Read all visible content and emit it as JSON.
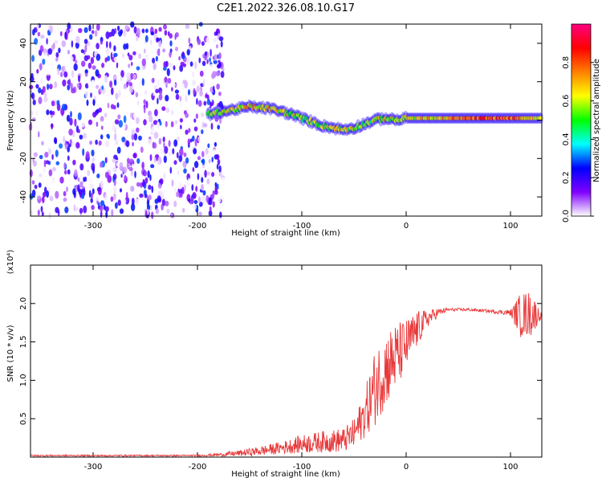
{
  "title": "C2E1.2022.326.08.10.G17",
  "chart_data": [
    {
      "type": "heatmap",
      "xlabel": "Height of straight line (km)",
      "ylabel": "Frequency (Hz)",
      "xlim": [
        -360,
        130
      ],
      "ylim": [
        -50,
        50
      ],
      "xticks": [
        -300,
        -200,
        -100,
        0,
        100
      ],
      "yticks": [
        -40,
        -20,
        0,
        20,
        40
      ],
      "colorbar": {
        "label": "Normalized spectral amplitude",
        "range": [
          0,
          1
        ],
        "ticks": [
          "0.0",
          "0.2",
          "0.4",
          "0.6",
          "0.8"
        ],
        "colors": [
          "#ffffff",
          "#8000ff",
          "#0000ff",
          "#00ffff",
          "#00ff00",
          "#ffff00",
          "#ff8000",
          "#ff0000",
          "#ff0080"
        ]
      },
      "noise_region": {
        "x": [
          -360,
          -175
        ],
        "y": [
          -50,
          50
        ],
        "amplitude": [
          0.0,
          0.3
        ]
      },
      "ridge": {
        "x": [
          -190,
          -170,
          -150,
          -130,
          -110,
          -95,
          -80,
          -70,
          -60,
          -50,
          -40,
          -30,
          -20,
          -10,
          0,
          30,
          60,
          90,
          110,
          130
        ],
        "frequency": [
          3,
          5,
          7,
          6,
          3,
          0,
          -3,
          -4,
          -5,
          -4,
          -2,
          0,
          1,
          0,
          1,
          1,
          1,
          1,
          1,
          1
        ],
        "amplitude": [
          0.5,
          0.6,
          0.65,
          0.65,
          0.6,
          0.55,
          0.55,
          0.6,
          0.6,
          0.55,
          0.5,
          0.55,
          0.6,
          0.6,
          0.65,
          0.65,
          0.75,
          0.8,
          0.7,
          0.65
        ]
      }
    },
    {
      "type": "line",
      "xlabel": "Height of straight line (km)",
      "ylabel": "SNR (10 * v/v)",
      "multiplier": "(x10⁴)",
      "xlim": [
        -360,
        130
      ],
      "ylim": [
        0,
        2.5
      ],
      "xticks": [
        -300,
        -200,
        -100,
        0,
        100
      ],
      "yticks": [
        "0.5",
        "1.0",
        "1.5",
        "2.0"
      ],
      "series": [
        {
          "color": "#e8393b",
          "x": [
            -360,
            -200,
            -180,
            -160,
            -140,
            -120,
            -100,
            -80,
            -60,
            -50,
            -40,
            -30,
            -20,
            -10,
            0,
            10,
            20,
            30,
            40,
            60,
            80,
            100,
            110,
            120,
            130
          ],
          "y": [
            0.02,
            0.02,
            0.03,
            0.05,
            0.08,
            0.12,
            0.17,
            0.2,
            0.22,
            0.3,
            0.55,
            0.9,
            1.15,
            1.3,
            1.45,
            1.65,
            1.8,
            1.88,
            1.92,
            1.92,
            1.9,
            1.88,
            1.85,
            1.87,
            1.84
          ],
          "spread": [
            0.01,
            0.01,
            0.02,
            0.04,
            0.06,
            0.08,
            0.12,
            0.14,
            0.16,
            0.2,
            0.3,
            0.5,
            0.5,
            0.45,
            0.35,
            0.25,
            0.12,
            0.06,
            0.02,
            0.02,
            0.02,
            0.04,
            0.3,
            0.3,
            0.02
          ]
        }
      ]
    }
  ]
}
